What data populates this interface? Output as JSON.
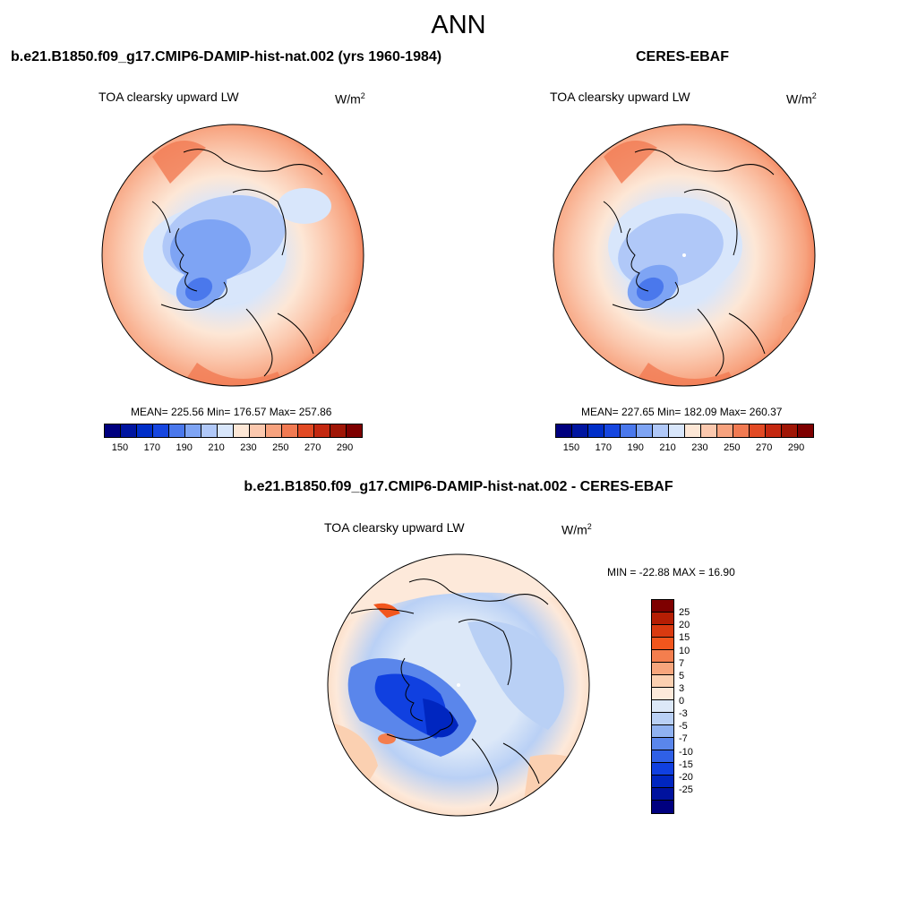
{
  "title": "ANN",
  "panels": [
    {
      "title": "b.e21.B1850.f09_g17.CMIP6-DAMIP-hist-nat.002 (yrs 1960-1984)",
      "variable": "TOA clearsky upward LW",
      "units_base": "W/m",
      "units_sup": "2",
      "stats": "MEAN= 225.56  Min= 176.57  Max= 257.86"
    },
    {
      "title": "CERES-EBAF",
      "variable": "TOA clearsky upward LW",
      "units_base": "W/m",
      "units_sup": "2",
      "stats": "MEAN= 227.65  Min= 182.09  Max= 260.37"
    },
    {
      "title": "b.e21.B1850.f09_g17.CMIP6-DAMIP-hist-nat.002 - CERES-EBAF",
      "variable": "TOA clearsky upward LW",
      "units_base": "W/m",
      "units_sup": "2",
      "stats": "MIN = -22.88 MAX =  16.90"
    }
  ],
  "colorbar_abs": {
    "colors": [
      "#00007f",
      "#0015a0",
      "#002ec8",
      "#1646e0",
      "#4a78ec",
      "#7ea4f4",
      "#b0c8f8",
      "#d8e6fb",
      "#fde7d6",
      "#fbc8ae",
      "#f7a27e",
      "#f17a52",
      "#e24a24",
      "#c42810",
      "#a01606",
      "#7e0000"
    ],
    "tick_labels": [
      "150",
      "170",
      "190",
      "210",
      "230",
      "250",
      "270",
      "290"
    ]
  },
  "colorbar_diff": {
    "colors": [
      "#7e0000",
      "#b51e04",
      "#d93a10",
      "#f2561d",
      "#f47e4e",
      "#f7a57c",
      "#fbd0b1",
      "#fde9da",
      "#dce8f8",
      "#b9d0f5",
      "#90b2f1",
      "#5a86eb",
      "#2f60e6",
      "#1040e0",
      "#0026c0",
      "#00129e",
      "#00007f"
    ],
    "labels": [
      "25",
      "20",
      "15",
      "10",
      "7",
      "5",
      "3",
      "0",
      "-3",
      "-5",
      "-7",
      "-10",
      "-15",
      "-20",
      "-25"
    ]
  }
}
